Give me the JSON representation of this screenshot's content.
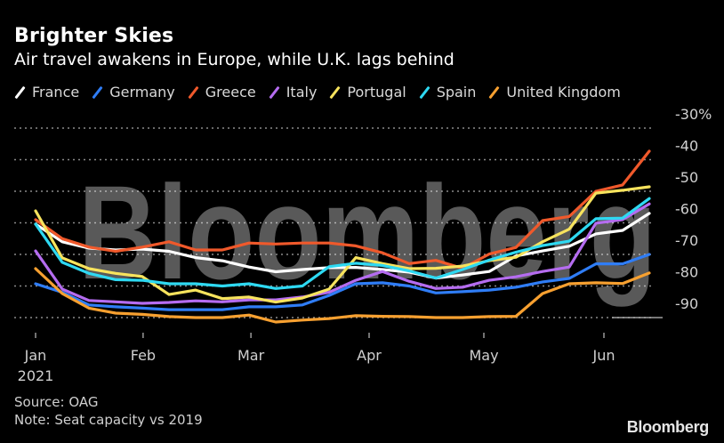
{
  "header": {
    "title": "Brighter Skies",
    "subtitle": "Air travel awakens in Europe, while U.K. lags behind"
  },
  "footer": {
    "source": "Source: OAG",
    "note": "Note: Seat capacity vs 2019",
    "brand": "Bloomberg"
  },
  "watermark": "Bloomberg",
  "chart_data": {
    "type": "line",
    "title": "Brighter Skies",
    "subtitle": "Air travel awakens in Europe, while U.K. lags behind",
    "xlabel": "",
    "ylabel": "",
    "x_unit": "weekly, starting early Jan 2021",
    "x_ticks": [
      {
        "label": "Jan",
        "week": 0
      },
      {
        "label": "Feb",
        "week": 4.03
      },
      {
        "label": "Mar",
        "week": 8.07
      },
      {
        "label": "Apr",
        "week": 12.5
      },
      {
        "label": "May",
        "week": 16.8
      },
      {
        "label": "Jun",
        "week": 21.3
      }
    ],
    "x_tick_sublabel": "2021",
    "x_range": [
      0,
      23
    ],
    "y_ticks": [
      "-30%",
      "-40",
      "-50",
      "-60",
      "-70",
      "-80",
      "-90"
    ],
    "y_tick_values": [
      -30,
      -40,
      -50,
      -60,
      -70,
      -80,
      -90
    ],
    "ylim": [
      -90,
      -30
    ],
    "y_axis_side": "right",
    "grid": "horizontal dotted",
    "legend_position": "top",
    "series": [
      {
        "name": "France",
        "color": "#ffffff",
        "values": [
          -60.4,
          -66,
          -68,
          -68.6,
          -68.3,
          -69,
          -71,
          -72,
          -74,
          -75.5,
          -74.8,
          -74.2,
          -74.1,
          -74.8,
          -75.6,
          -77.5,
          -76.5,
          -75.4,
          -70.5,
          -68.9,
          -67.4,
          -63.5,
          -62.4,
          -57
        ]
      },
      {
        "name": "Germany",
        "color": "#2f7df6",
        "values": [
          -79.3,
          -82,
          -86,
          -86.6,
          -87,
          -87.5,
          -87.5,
          -87.5,
          -86.6,
          -86.6,
          -86,
          -83,
          -79.3,
          -79,
          -80,
          -82.2,
          -81.8,
          -81.3,
          -80.4,
          -78.7,
          -77.6,
          -73,
          -73,
          -70
        ]
      },
      {
        "name": "Greece",
        "color": "#f0592b",
        "values": [
          -59,
          -65,
          -67.7,
          -69,
          -67.7,
          -66,
          -68.6,
          -68.6,
          -66.4,
          -66.7,
          -66.4,
          -66.4,
          -67.3,
          -69.5,
          -72.9,
          -71.9,
          -74.4,
          -69.9,
          -67.8,
          -59.3,
          -58,
          -50,
          -48,
          -37.3
        ]
      },
      {
        "name": "Italy",
        "color": "#b56cf0",
        "values": [
          -68.9,
          -81,
          -84.6,
          -85,
          -85.5,
          -85.2,
          -84.7,
          -85,
          -84.4,
          -84.4,
          -83.5,
          -82,
          -78.2,
          -75.4,
          -78.5,
          -80.8,
          -80.4,
          -78.2,
          -77.1,
          -75.4,
          -74,
          -60.1,
          -59,
          -54
        ]
      },
      {
        "name": "Portugal",
        "color": "#f7e35d",
        "values": [
          -56.2,
          -71.1,
          -74.5,
          -76,
          -77,
          -82.7,
          -81.3,
          -84,
          -83.5,
          -85.1,
          -83.8,
          -81,
          -71,
          -72.9,
          -74.5,
          -74.4,
          -73.7,
          -72,
          -70.9,
          -66,
          -62,
          -50.6,
          -49.7,
          -48.6
        ]
      },
      {
        "name": "Spain",
        "color": "#2ed9f2",
        "values": [
          -60.4,
          -72.5,
          -76,
          -78,
          -78.2,
          -79.3,
          -79.3,
          -80,
          -79.3,
          -80.8,
          -80,
          -73.9,
          -72.8,
          -73.5,
          -75.2,
          -77.5,
          -74.8,
          -71.8,
          -69.3,
          -67.2,
          -65.8,
          -58.7,
          -58.5,
          -52.3
        ]
      },
      {
        "name": "United Kingdom",
        "color": "#f7a030",
        "values": [
          -74.5,
          -82.4,
          -87,
          -88.6,
          -89,
          -89.7,
          -90,
          -90,
          -89.2,
          -91.4,
          -90.8,
          -90.3,
          -89.4,
          -89.6,
          -89.7,
          -90,
          -90,
          -89.7,
          -89.6,
          -82.4,
          -79.3,
          -79,
          -79.2,
          -75.9
        ]
      }
    ]
  }
}
